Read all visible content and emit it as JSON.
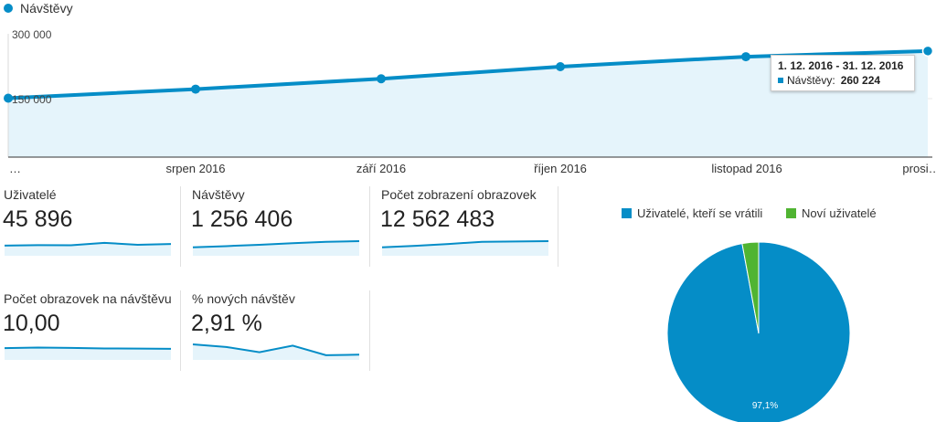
{
  "legend": {
    "series_name": "Návštěvy"
  },
  "tooltip": {
    "date_range": "1. 12. 2016 - 31. 12. 2016",
    "series_label": "Návštěvy:",
    "value": "260 224"
  },
  "metrics": [
    {
      "label": "Uživatelé",
      "value": "45 896",
      "spark": [
        0.45,
        0.48,
        0.47,
        0.62,
        0.5,
        0.55
      ]
    },
    {
      "label": "Návštěvy",
      "value": "1 256 406",
      "spark": [
        0.35,
        0.42,
        0.5,
        0.6,
        0.68,
        0.72
      ]
    },
    {
      "label": "Počet zobrazení obrazovek",
      "value": "12 562 483",
      "spark": [
        0.35,
        0.44,
        0.55,
        0.68,
        0.7,
        0.72
      ]
    },
    {
      "label": "Počet obrazovek na návštěvu",
      "value": "10,00",
      "spark": [
        0.55,
        0.58,
        0.56,
        0.53,
        0.52,
        0.51
      ]
    },
    {
      "label": "% nových návštěv",
      "value": "2,91 %",
      "spark": [
        0.78,
        0.62,
        0.3,
        0.7,
        0.12,
        0.15
      ]
    }
  ],
  "pie": {
    "legend": [
      {
        "label": "Uživatelé, kteří se vrátili",
        "color": "#058dc7"
      },
      {
        "label": "Noví uživatelé",
        "color": "#50b432"
      }
    ],
    "slice_label": "97,1%"
  },
  "chart_data": [
    {
      "type": "area",
      "series": [
        {
          "name": "Návštěvy",
          "values": [
            151000,
            172000,
            196000,
            224000,
            247000,
            260224
          ]
        }
      ],
      "x": [
        "…",
        "srpen 2016",
        "září 2016",
        "říjen 2016",
        "listopad 2016",
        "prosi…"
      ],
      "yticks": [
        "300 000",
        "150 000"
      ],
      "color": "#058dc7",
      "fill": "#e5f4fb"
    },
    {
      "type": "pie",
      "labels": [
        "Uživatelé, kteří se vrátili",
        "Noví uživatelé"
      ],
      "values": [
        97.1,
        2.9
      ],
      "colors": [
        "#058dc7",
        "#50b432"
      ]
    }
  ]
}
